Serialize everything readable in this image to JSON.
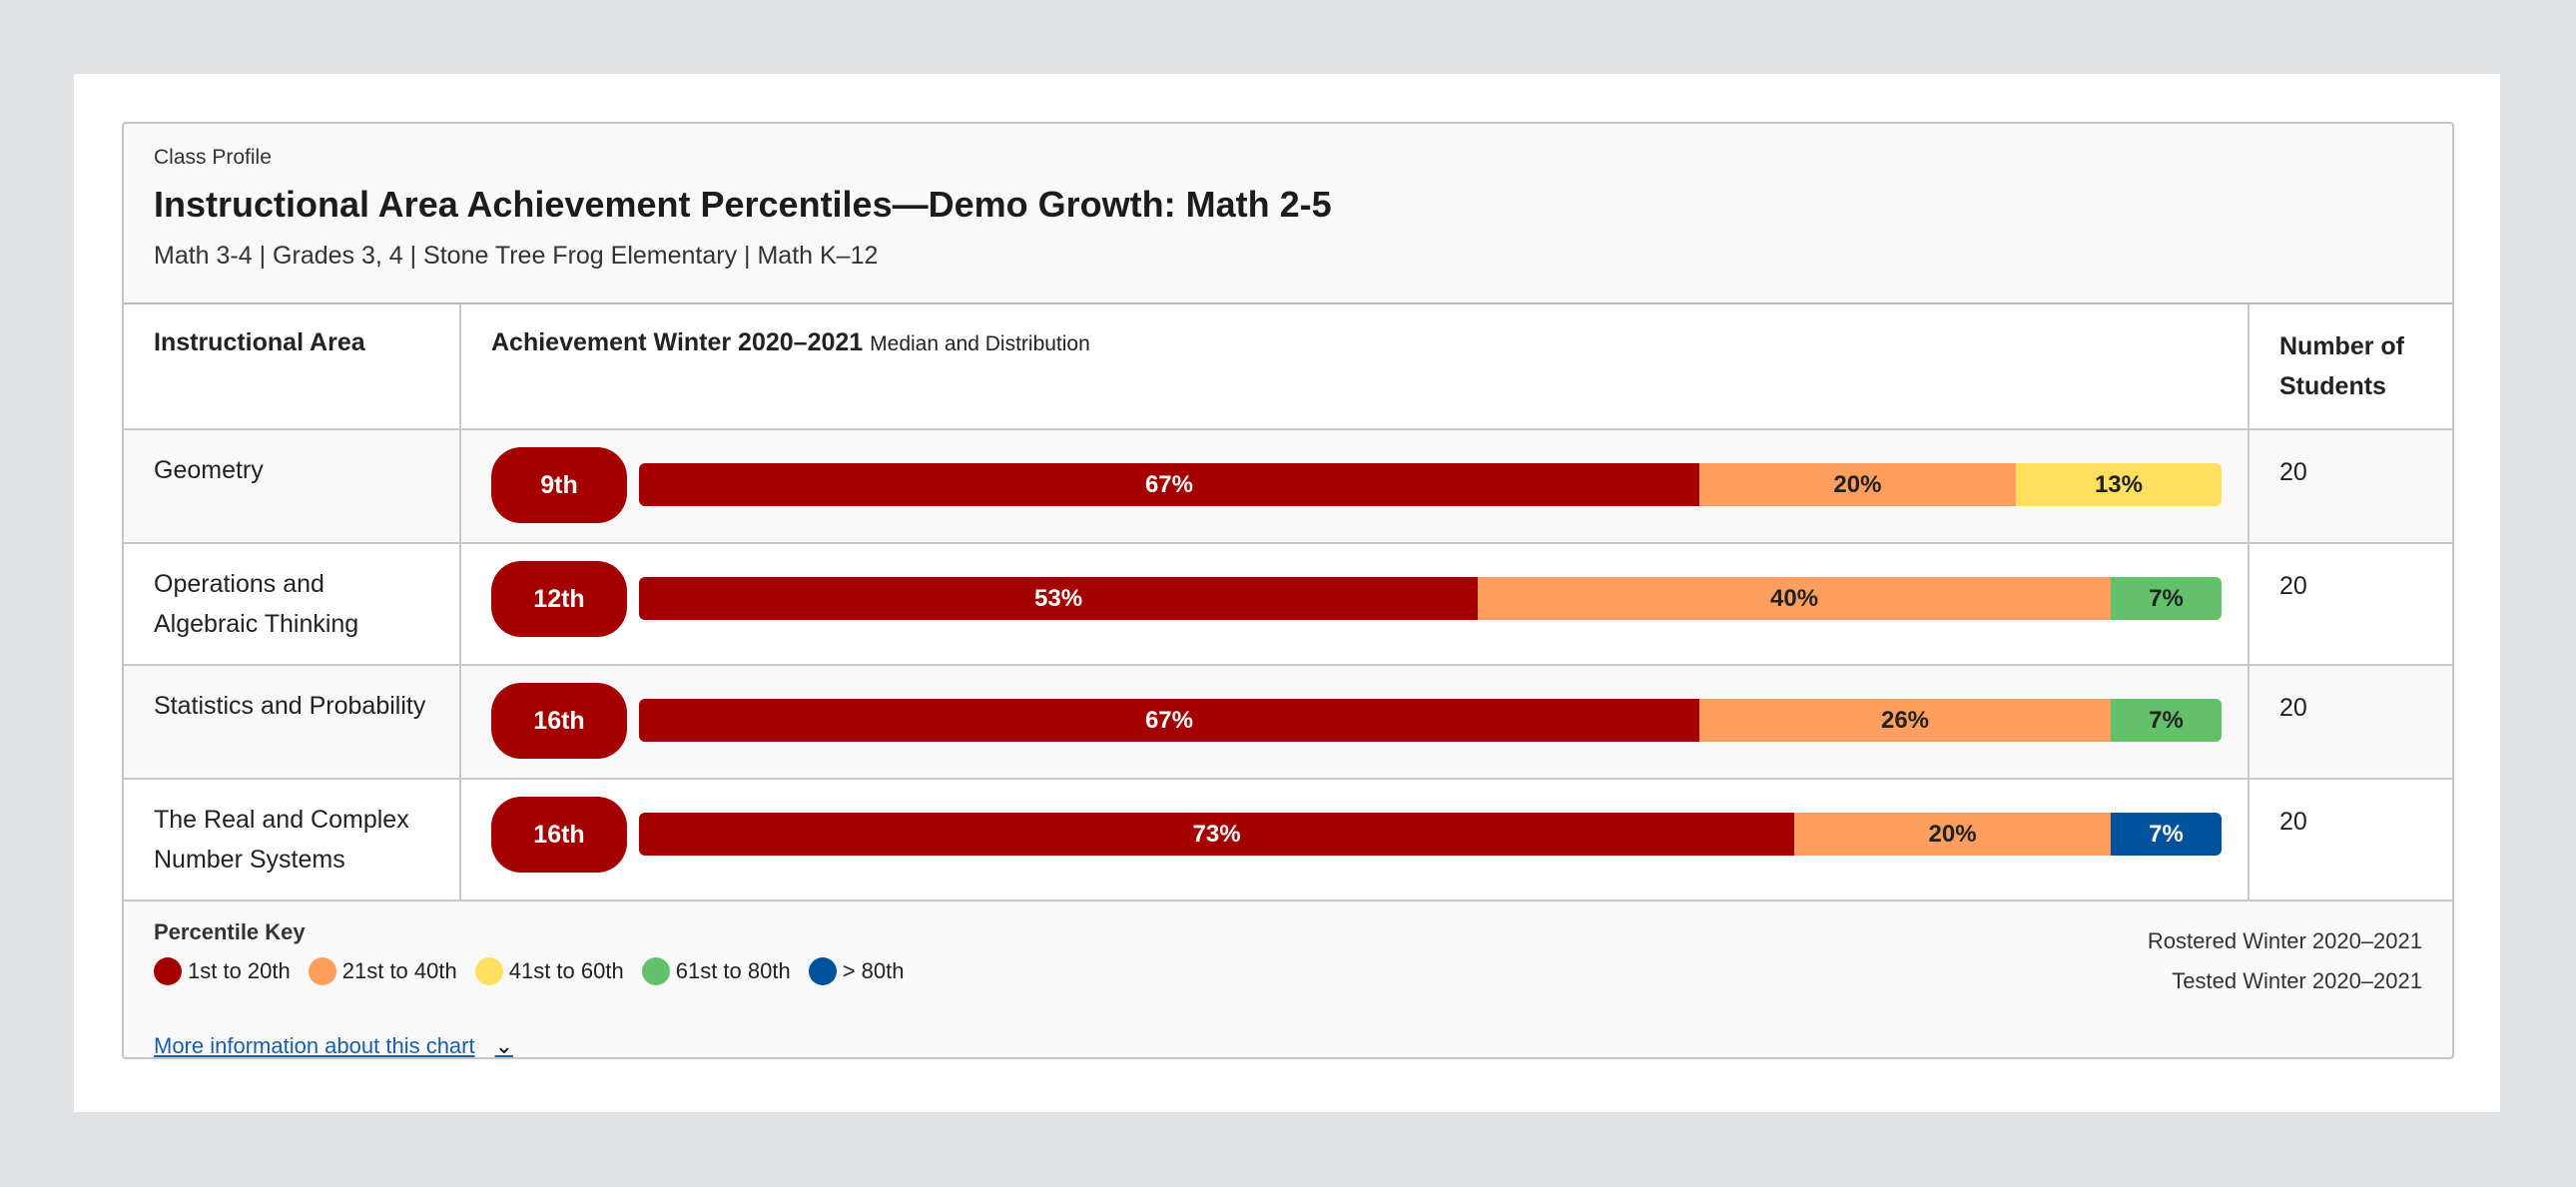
{
  "header": {
    "eyebrow": "Class Profile",
    "title": "Instructional Area Achievement Percentiles—Demo Growth: Math 2-5",
    "subtitle": "Math 3-4 | Grades 3, 4 | Stone Tree Frog Elementary | Math K–12"
  },
  "columns": {
    "area": "Instructional Area",
    "achievement": "Achievement Winter 2020–2021",
    "achievement_sub": "Median and Distribution",
    "students": "Number of Students"
  },
  "colors": {
    "1st to 20th": "#a50000",
    "21st to 40th": "#ff9e5e",
    "41st to 60th": "#ffdf5f",
    "61st to 80th": "#62c16a",
    "> 80th": "#00529b"
  },
  "chart_data": {
    "type": "bar",
    "stacked": true,
    "categories": [
      "Geometry",
      "Operations and Algebraic Thinking",
      "Statistics and Probability",
      "The Real and Complex Number Systems"
    ],
    "medians": [
      "9th",
      "12th",
      "16th",
      "16th"
    ],
    "students": [
      "20",
      "20",
      "20",
      "20"
    ],
    "rows": [
      [
        {
          "band": "1st to 20th",
          "value": 67,
          "label": "67%"
        },
        {
          "band": "21st to 40th",
          "value": 20,
          "label": "20%"
        },
        {
          "band": "41st to 60th",
          "value": 13,
          "label": "13%"
        }
      ],
      [
        {
          "band": "1st to 20th",
          "value": 53,
          "label": "53%"
        },
        {
          "band": "21st to 40th",
          "value": 40,
          "label": "40%"
        },
        {
          "band": "61st to 80th",
          "value": 7,
          "label": "7%"
        }
      ],
      [
        {
          "band": "1st to 20th",
          "value": 67,
          "label": "67%"
        },
        {
          "band": "21st to 40th",
          "value": 26,
          "label": "26%"
        },
        {
          "band": "61st to 80th",
          "value": 7,
          "label": "7%"
        }
      ],
      [
        {
          "band": "1st to 20th",
          "value": 73,
          "label": "73%"
        },
        {
          "band": "21st to 40th",
          "value": 20,
          "label": "20%"
        },
        {
          "band": "> 80th",
          "value": 7,
          "label": "7%"
        }
      ]
    ]
  },
  "footer": {
    "key_title": "Percentile Key",
    "keys": [
      "1st to 20th",
      "21st to 40th",
      "41st to 60th",
      "61st to 80th",
      "> 80th"
    ],
    "rostered": "Rostered Winter 2020–2021",
    "tested": "Tested Winter 2020–2021",
    "more_link": "More information about this chart"
  }
}
